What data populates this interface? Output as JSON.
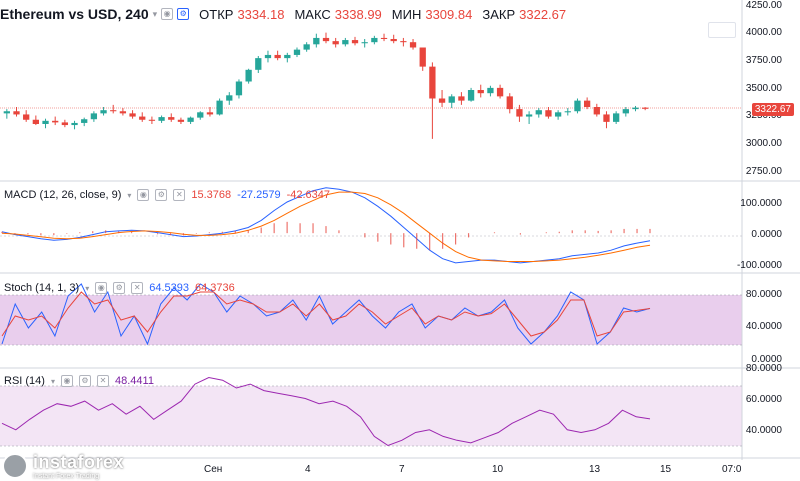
{
  "header": {
    "title": "Ethereum vs USD, 240",
    "open_label": "ОТКР",
    "open_value": "3334.18",
    "high_label": "МАКС",
    "high_value": "3338.99",
    "low_label": "МИН",
    "low_value": "3309.84",
    "close_label": "ЗАКР",
    "close_value": "3322.67"
  },
  "macd": {
    "label": "MACD (12, 26, close, 9)",
    "v1": "15.3768",
    "v2": "-27.2579",
    "v3": "-42.6347"
  },
  "stoch": {
    "label": "Stoch (14, 1, 3)",
    "v1": "64.5393",
    "v2": "64.3736"
  },
  "rsi": {
    "label": "RSI (14)",
    "v1": "48.4411"
  },
  "price_tag": "3322.67",
  "watermark": {
    "name": "instaforex",
    "tagline": "Instant Forex Trading"
  },
  "colors": {
    "up": "#26a69a",
    "down": "#e8453c",
    "macd_line": "#2962ff",
    "signal_line": "#ff6d00",
    "stoch_k": "#2962ff",
    "stoch_d": "#e8453c",
    "rsi": "#9c27b0"
  },
  "chart_data": [
    {
      "type": "candlestick",
      "title": "Ethereum vs USD, 240",
      "x_tick_labels": [
        "Сен",
        "4",
        "7",
        "10",
        "13",
        "15",
        "07:0"
      ],
      "y_tick_labels": [
        "4250.00",
        "4000.00",
        "3750.00",
        "3500.00",
        "3250.00",
        "3000.00",
        "2750.00"
      ],
      "ylim": [
        2700,
        4300
      ],
      "last_price": 3322.67,
      "ohlc": [
        [
          3280,
          3320,
          3230,
          3300
        ],
        [
          3300,
          3340,
          3250,
          3270
        ],
        [
          3270,
          3310,
          3200,
          3220
        ],
        [
          3220,
          3260,
          3170,
          3180
        ],
        [
          3180,
          3230,
          3140,
          3210
        ],
        [
          3210,
          3250,
          3170,
          3195
        ],
        [
          3195,
          3220,
          3150,
          3170
        ],
        [
          3170,
          3210,
          3130,
          3190
        ],
        [
          3190,
          3240,
          3160,
          3225
        ],
        [
          3225,
          3300,
          3200,
          3280
        ],
        [
          3280,
          3340,
          3260,
          3310
        ],
        [
          3310,
          3360,
          3280,
          3300
        ],
        [
          3300,
          3330,
          3260,
          3280
        ],
        [
          3280,
          3310,
          3230,
          3250
        ],
        [
          3250,
          3290,
          3200,
          3220
        ],
        [
          3220,
          3250,
          3180,
          3210
        ],
        [
          3210,
          3260,
          3190,
          3245
        ],
        [
          3245,
          3280,
          3200,
          3220
        ],
        [
          3220,
          3240,
          3180,
          3200
        ],
        [
          3200,
          3250,
          3180,
          3240
        ],
        [
          3240,
          3300,
          3220,
          3290
        ],
        [
          3290,
          3340,
          3250,
          3270
        ],
        [
          3270,
          3420,
          3260,
          3400
        ],
        [
          3400,
          3480,
          3360,
          3450
        ],
        [
          3450,
          3600,
          3420,
          3580
        ],
        [
          3580,
          3700,
          3560,
          3690
        ],
        [
          3690,
          3820,
          3660,
          3800
        ],
        [
          3800,
          3870,
          3760,
          3830
        ],
        [
          3830,
          3870,
          3780,
          3800
        ],
        [
          3800,
          3850,
          3760,
          3830
        ],
        [
          3830,
          3900,
          3810,
          3880
        ],
        [
          3880,
          3950,
          3860,
          3930
        ],
        [
          3930,
          4030,
          3900,
          3990
        ],
        [
          3990,
          4040,
          3940,
          3960
        ],
        [
          3960,
          3990,
          3900,
          3930
        ],
        [
          3930,
          3990,
          3910,
          3970
        ],
        [
          3970,
          4000,
          3920,
          3940
        ],
        [
          3940,
          3980,
          3900,
          3950
        ],
        [
          3950,
          4010,
          3930,
          3990
        ],
        [
          3990,
          4030,
          3960,
          3980
        ],
        [
          3980,
          4020,
          3940,
          3960
        ],
        [
          3960,
          3990,
          3910,
          3950
        ],
        [
          3950,
          3980,
          3880,
          3900
        ],
        [
          3900,
          3900,
          3680,
          3720
        ],
        [
          3720,
          3760,
          3040,
          3420
        ],
        [
          3420,
          3500,
          3340,
          3380
        ],
        [
          3380,
          3460,
          3330,
          3440
        ],
        [
          3440,
          3480,
          3360,
          3400
        ],
        [
          3400,
          3520,
          3390,
          3500
        ],
        [
          3500,
          3550,
          3430,
          3470
        ],
        [
          3470,
          3540,
          3440,
          3520
        ],
        [
          3520,
          3550,
          3420,
          3440
        ],
        [
          3440,
          3470,
          3280,
          3320
        ],
        [
          3320,
          3360,
          3200,
          3250
        ],
        [
          3250,
          3300,
          3180,
          3270
        ],
        [
          3270,
          3330,
          3240,
          3310
        ],
        [
          3310,
          3340,
          3230,
          3250
        ],
        [
          3250,
          3310,
          3220,
          3290
        ],
        [
          3290,
          3330,
          3260,
          3300
        ],
        [
          3300,
          3420,
          3280,
          3400
        ],
        [
          3400,
          3430,
          3320,
          3340
        ],
        [
          3340,
          3370,
          3250,
          3270
        ],
        [
          3270,
          3300,
          3140,
          3200
        ],
        [
          3200,
          3300,
          3180,
          3280
        ],
        [
          3280,
          3340,
          3250,
          3320
        ],
        [
          3320,
          3350,
          3300,
          3334
        ],
        [
          3334,
          3339,
          3310,
          3323
        ]
      ]
    },
    {
      "type": "line",
      "title": "MACD (12, 26, close, 9)",
      "y_tick_labels": [
        "100.0000",
        "0.0000",
        "-100.0000"
      ],
      "ylim": [
        -130,
        170
      ],
      "series": [
        {
          "name": "MACD",
          "values": [
            5,
            -5,
            -12,
            -20,
            -25,
            -22,
            -15,
            -5,
            5,
            8,
            10,
            8,
            2,
            -5,
            -12,
            -10,
            -5,
            0,
            8,
            20,
            45,
            80,
            110,
            130,
            150,
            160,
            155,
            145,
            125,
            95,
            60,
            20,
            -20,
            -60,
            -90,
            -105,
            -100,
            -95,
            -95,
            -100,
            -105,
            -100,
            -95,
            -90,
            -80,
            -75,
            -70,
            -60,
            -45,
            -35,
            -27
          ]
        },
        {
          "name": "Signal",
          "values": [
            0,
            -3,
            -8,
            -13,
            -18,
            -20,
            -18,
            -12,
            -5,
            2,
            6,
            8,
            6,
            2,
            -4,
            -8,
            -8,
            -5,
            0,
            10,
            25,
            45,
            70,
            95,
            115,
            135,
            145,
            145,
            140,
            125,
            100,
            70,
            35,
            0,
            -35,
            -65,
            -85,
            -95,
            -98,
            -100,
            -100,
            -100,
            -98,
            -95,
            -90,
            -85,
            -78,
            -70,
            -60,
            -50,
            -43
          ]
        }
      ],
      "histogram": [
        5,
        -2,
        -4,
        -7,
        -7,
        -2,
        3,
        7,
        10,
        6,
        4,
        0,
        -4,
        -7,
        -8,
        -2,
        3,
        5,
        8,
        10,
        20,
        35,
        40,
        35,
        35,
        25,
        10,
        0,
        -15,
        -30,
        -40,
        -50,
        -55,
        -60,
        -55,
        -40,
        -15,
        0,
        3,
        0,
        -5,
        0,
        3,
        5,
        10,
        10,
        8,
        10,
        15,
        15,
        15
      ]
    },
    {
      "type": "line",
      "title": "Stoch (14, 1, 3)",
      "y_tick_labels": [
        "80.0000",
        "40.0000",
        "0.0000"
      ],
      "ylim": [
        0,
        100
      ],
      "series": [
        {
          "name": "%K",
          "values": [
            20,
            70,
            40,
            60,
            30,
            80,
            95,
            60,
            85,
            30,
            55,
            20,
            70,
            90,
            75,
            95,
            85,
            60,
            80,
            70,
            55,
            60,
            75,
            50,
            80,
            45,
            60,
            75,
            55,
            40,
            60,
            70,
            40,
            55,
            50,
            65,
            55,
            60,
            75,
            40,
            20,
            35,
            55,
            85,
            75,
            20,
            35,
            65,
            60,
            64.5
          ]
        },
        {
          "name": "%D",
          "values": [
            30,
            55,
            50,
            55,
            40,
            65,
            85,
            70,
            75,
            50,
            55,
            35,
            60,
            80,
            80,
            85,
            85,
            70,
            75,
            70,
            60,
            60,
            70,
            55,
            70,
            50,
            55,
            70,
            60,
            45,
            55,
            65,
            45,
            55,
            50,
            60,
            55,
            58,
            70,
            50,
            30,
            35,
            50,
            75,
            75,
            30,
            35,
            60,
            62,
            64.4
          ]
        }
      ]
    },
    {
      "type": "line",
      "title": "RSI (14)",
      "y_tick_labels": [
        "80.0000",
        "60.0000",
        "40.0000"
      ],
      "ylim": [
        20,
        85
      ],
      "series": [
        {
          "name": "RSI",
          "values": [
            45,
            40,
            48,
            55,
            60,
            58,
            62,
            55,
            60,
            52,
            58,
            48,
            55,
            62,
            75,
            80,
            78,
            72,
            75,
            70,
            68,
            66,
            64,
            60,
            62,
            58,
            50,
            35,
            28,
            32,
            38,
            40,
            35,
            32,
            30,
            34,
            38,
            45,
            50,
            55,
            52,
            40,
            38,
            40,
            45,
            55,
            50,
            48.4
          ]
        }
      ]
    }
  ]
}
